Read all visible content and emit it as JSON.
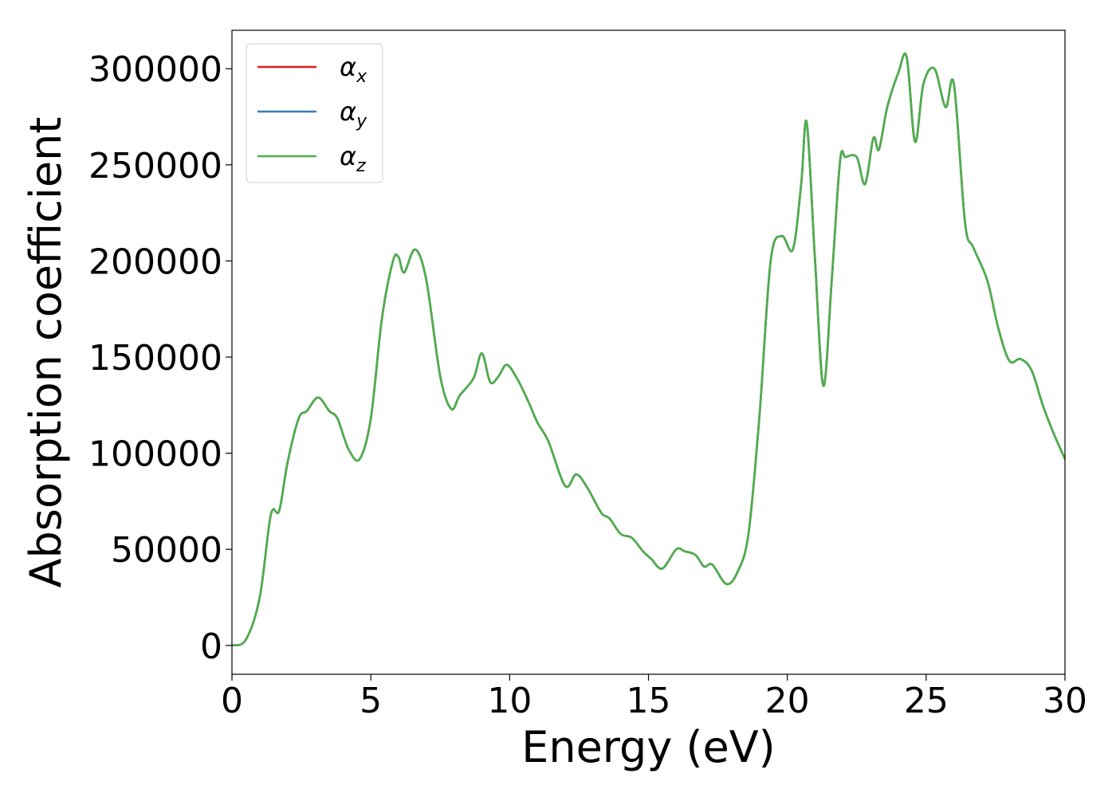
{
  "chart_data": {
    "type": "line",
    "title": "",
    "xlabel": "Energy (eV)",
    "ylabel": "Absorption coefficient",
    "xlim": [
      0,
      30
    ],
    "ylim": [
      -15000,
      320000
    ],
    "xticks": [
      0,
      5,
      10,
      15,
      20,
      25,
      30
    ],
    "yticks": [
      0,
      50000,
      100000,
      150000,
      200000,
      250000,
      300000
    ],
    "grid": false,
    "legend_placement": "top-left",
    "x": [
      0,
      0.5,
      1.0,
      1.4,
      1.7,
      2.0,
      2.4,
      2.7,
      3.1,
      3.5,
      3.8,
      4.2,
      4.6,
      5.0,
      5.4,
      5.8,
      6.0,
      6.2,
      6.6,
      7.0,
      7.5,
      7.9,
      8.2,
      8.7,
      9.0,
      9.3,
      9.6,
      9.9,
      10.3,
      10.7,
      11.0,
      11.4,
      12.0,
      12.4,
      12.8,
      13.3,
      13.6,
      14.0,
      14.4,
      14.8,
      15.1,
      15.5,
      16.0,
      16.3,
      16.7,
      17.0,
      17.3,
      17.8,
      18.2,
      18.6,
      19.0,
      19.4,
      19.8,
      20.2,
      20.5,
      20.7,
      21.0,
      21.3,
      21.6,
      21.9,
      22.1,
      22.5,
      22.8,
      23.1,
      23.3,
      23.6,
      24.0,
      24.3,
      24.6,
      24.9,
      25.3,
      25.7,
      26.0,
      26.4,
      26.7,
      27.2,
      27.6,
      28.0,
      28.4,
      28.8,
      29.2,
      29.6,
      30.0
    ],
    "series": [
      {
        "name": "α_x",
        "legend_base": "α",
        "legend_sub": "x",
        "color": "#e41a1c",
        "values": [
          0,
          3000,
          25000,
          68000,
          70000,
          95000,
          118000,
          122000,
          129000,
          122000,
          118000,
          102000,
          97000,
          118000,
          170000,
          200000,
          202000,
          194000,
          206000,
          190000,
          140000,
          123000,
          130000,
          139000,
          152000,
          137000,
          140000,
          146000,
          138000,
          126000,
          116000,
          106000,
          83000,
          89000,
          82000,
          69000,
          66000,
          58000,
          56000,
          49000,
          45000,
          40000,
          50000,
          49000,
          47000,
          41000,
          42000,
          32000,
          38000,
          58000,
          120000,
          200000,
          213000,
          206000,
          240000,
          272000,
          200000,
          135000,
          190000,
          252000,
          254000,
          254000,
          240000,
          264000,
          258000,
          280000,
          298000,
          306000,
          262000,
          292000,
          300000,
          280000,
          292000,
          220000,
          207000,
          190000,
          165000,
          148000,
          149000,
          143000,
          125000,
          110000,
          97000
        ]
      },
      {
        "name": "α_y",
        "legend_base": "α",
        "legend_sub": "y",
        "color": "#377eb8",
        "values": [
          0,
          3000,
          25000,
          68000,
          70000,
          95000,
          118000,
          122000,
          129000,
          122000,
          118000,
          102000,
          97000,
          118000,
          170000,
          200000,
          202000,
          194000,
          206000,
          190000,
          140000,
          123000,
          130000,
          139000,
          152000,
          137000,
          140000,
          146000,
          138000,
          126000,
          116000,
          106000,
          83000,
          89000,
          82000,
          69000,
          66000,
          58000,
          56000,
          49000,
          45000,
          40000,
          50000,
          49000,
          47000,
          41000,
          42000,
          32000,
          38000,
          58000,
          120000,
          200000,
          213000,
          206000,
          240000,
          272000,
          200000,
          135000,
          190000,
          252000,
          254000,
          254000,
          240000,
          264000,
          258000,
          280000,
          298000,
          306000,
          262000,
          292000,
          300000,
          280000,
          292000,
          220000,
          207000,
          190000,
          165000,
          148000,
          149000,
          143000,
          125000,
          110000,
          97000
        ]
      },
      {
        "name": "α_z",
        "legend_base": "α",
        "legend_sub": "z",
        "color": "#4daf4a",
        "values": [
          0,
          3000,
          25000,
          68000,
          70000,
          95000,
          118000,
          122000,
          129000,
          122000,
          118000,
          102000,
          97000,
          118000,
          170000,
          200000,
          202000,
          194000,
          206000,
          190000,
          140000,
          123000,
          130000,
          139000,
          152000,
          137000,
          140000,
          146000,
          138000,
          126000,
          116000,
          106000,
          83000,
          89000,
          82000,
          69000,
          66000,
          58000,
          56000,
          49000,
          45000,
          40000,
          50000,
          49000,
          47000,
          41000,
          42000,
          32000,
          38000,
          58000,
          120000,
          200000,
          213000,
          206000,
          240000,
          272000,
          200000,
          135000,
          190000,
          252000,
          254000,
          254000,
          240000,
          264000,
          258000,
          280000,
          298000,
          306000,
          262000,
          292000,
          300000,
          280000,
          292000,
          220000,
          207000,
          190000,
          165000,
          148000,
          149000,
          143000,
          125000,
          110000,
          97000
        ]
      }
    ]
  }
}
